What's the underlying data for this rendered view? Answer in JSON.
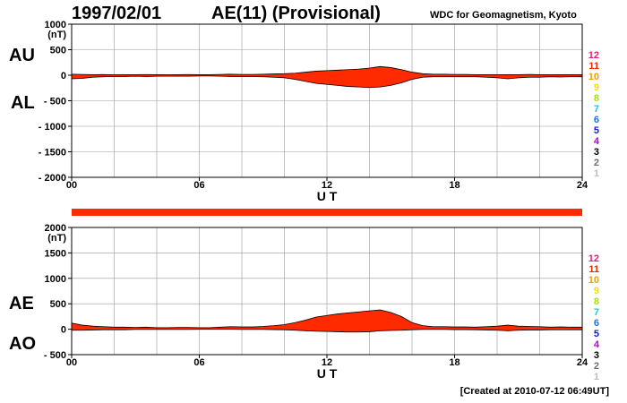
{
  "header": {
    "date": "1997/02/01",
    "title": "AE(11) (Provisional)",
    "org": "WDC for Geomagnetism, Kyoto"
  },
  "footer": {
    "created": "[Created at 2010-07-12 06:49UT]"
  },
  "colors": {
    "fill": "#ff2a00",
    "line": "#000000",
    "grid": "#999999"
  },
  "station_legend": [
    {
      "label": "12",
      "color": "#e0207c"
    },
    {
      "label": "11",
      "color": "#e03000"
    },
    {
      "label": "10",
      "color": "#f0a000"
    },
    {
      "label": "9",
      "color": "#f4e000"
    },
    {
      "label": "8",
      "color": "#a8e000"
    },
    {
      "label": "7",
      "color": "#20c8d8"
    },
    {
      "label": "6",
      "color": "#1c78e8"
    },
    {
      "label": "5",
      "color": "#1a20c0"
    },
    {
      "label": "4",
      "color": "#c000d8"
    },
    {
      "label": "3",
      "color": "#000000"
    },
    {
      "label": "2",
      "color": "#707070"
    },
    {
      "label": "1",
      "color": "#bdbdbd"
    }
  ],
  "chart_data": [
    {
      "type": "area",
      "panel": "top",
      "series_labels": [
        "AU",
        "AL"
      ],
      "ylabel": "(nT)",
      "xlabel": "U T",
      "xlim": [
        0,
        24
      ],
      "ylim": [
        -2000,
        1000
      ],
      "x_ticks": [
        "00",
        "06",
        "12",
        "18",
        "24"
      ],
      "y_ticks": [
        "1000",
        "500",
        "0",
        "- 500",
        "- 1000",
        "- 1500",
        "- 2000"
      ],
      "grid": true,
      "x": [
        0,
        0.5,
        1,
        1.5,
        2,
        2.5,
        3,
        3.5,
        4,
        4.5,
        5,
        5.5,
        6,
        6.5,
        7,
        7.5,
        8,
        8.5,
        9,
        9.5,
        10,
        10.5,
        11,
        11.5,
        12,
        12.5,
        13,
        13.5,
        14,
        14.5,
        15,
        15.5,
        16,
        16.5,
        17,
        17.5,
        18,
        18.5,
        19,
        19.5,
        20,
        20.5,
        21,
        21.5,
        22,
        22.5,
        23,
        23.5,
        24
      ],
      "AU": [
        20,
        15,
        10,
        12,
        8,
        10,
        10,
        12,
        10,
        8,
        10,
        12,
        10,
        10,
        15,
        20,
        15,
        15,
        20,
        25,
        30,
        40,
        60,
        80,
        90,
        100,
        110,
        120,
        140,
        170,
        150,
        110,
        60,
        30,
        20,
        20,
        15,
        15,
        10,
        10,
        10,
        10,
        10,
        15,
        10,
        10,
        10,
        10,
        10
      ],
      "AL": [
        -70,
        -60,
        -40,
        -30,
        -25,
        -25,
        -20,
        -25,
        -20,
        -20,
        -20,
        -20,
        -15,
        -15,
        -20,
        -25,
        -25,
        -25,
        -30,
        -40,
        -50,
        -80,
        -120,
        -160,
        -180,
        -200,
        -220,
        -230,
        -240,
        -230,
        -200,
        -150,
        -80,
        -40,
        -30,
        -30,
        -30,
        -30,
        -30,
        -40,
        -50,
        -70,
        -50,
        -40,
        -40,
        -30,
        -35,
        -30,
        -30
      ]
    },
    {
      "type": "area",
      "panel": "bottom",
      "series_labels": [
        "AE",
        "AO"
      ],
      "ylabel": "(nT)",
      "xlabel": "U T",
      "xlim": [
        0,
        24
      ],
      "ylim": [
        -500,
        2000
      ],
      "x_ticks": [
        "00",
        "06",
        "12",
        "18",
        "24"
      ],
      "y_ticks": [
        "2000",
        "1500",
        "1000",
        "500",
        "0",
        "- 500"
      ],
      "grid": true,
      "x": [
        0,
        0.5,
        1,
        1.5,
        2,
        2.5,
        3,
        3.5,
        4,
        4.5,
        5,
        5.5,
        6,
        6.5,
        7,
        7.5,
        8,
        8.5,
        9,
        9.5,
        10,
        10.5,
        11,
        11.5,
        12,
        12.5,
        13,
        13.5,
        14,
        14.5,
        15,
        15.5,
        16,
        16.5,
        17,
        17.5,
        18,
        18.5,
        19,
        19.5,
        20,
        20.5,
        21,
        21.5,
        22,
        22.5,
        23,
        23.5,
        24
      ],
      "AE": [
        120,
        80,
        60,
        50,
        40,
        40,
        35,
        40,
        30,
        30,
        35,
        35,
        30,
        30,
        40,
        50,
        45,
        45,
        55,
        70,
        90,
        130,
        180,
        240,
        270,
        300,
        320,
        340,
        360,
        380,
        330,
        250,
        130,
        70,
        50,
        50,
        45,
        45,
        40,
        50,
        60,
        80,
        60,
        55,
        50,
        40,
        45,
        40,
        40
      ],
      "AO": [
        -20,
        -20,
        -15,
        -10,
        -10,
        -10,
        -5,
        -5,
        -5,
        -5,
        -5,
        -5,
        -3,
        -3,
        -3,
        -3,
        -5,
        -5,
        -5,
        -8,
        -10,
        -20,
        -30,
        -40,
        -45,
        -50,
        -55,
        -55,
        -50,
        -30,
        -25,
        -20,
        -10,
        -5,
        -5,
        -5,
        -8,
        -8,
        -10,
        -15,
        -20,
        -30,
        -20,
        -15,
        -15,
        -10,
        -12,
        -10,
        -10
      ]
    }
  ]
}
